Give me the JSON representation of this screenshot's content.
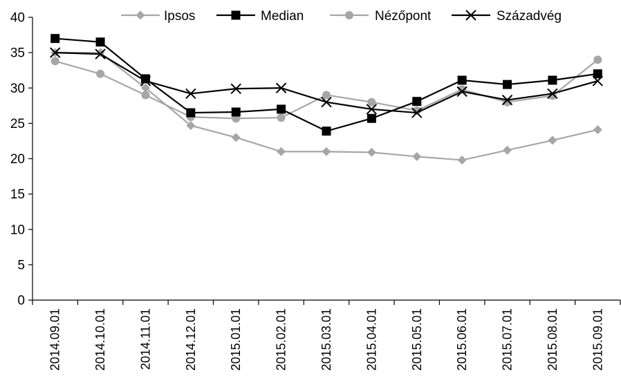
{
  "chart_data": {
    "type": "line",
    "title": "",
    "xlabel": "",
    "ylabel": "",
    "ylim": [
      0,
      40
    ],
    "yticks": [
      "0",
      "5",
      "10",
      "15",
      "20",
      "25",
      "30",
      "35",
      "40"
    ],
    "categories": [
      "2014.09.01",
      "2014.10.01",
      "2014.11.01",
      "2014.12.01",
      "2015.01.01",
      "2015.02.01",
      "2015.03.01",
      "2015.04.01",
      "2015.05.01",
      "2015.06.01",
      "2015.07.01",
      "2015.08.01",
      "2015.09.01"
    ],
    "grid": false,
    "legend": "top",
    "series": [
      {
        "name": "Ipsos",
        "marker": "diamond",
        "color": "#a6a6a6",
        "values": [
          35,
          35,
          30,
          24.7,
          23,
          21,
          21,
          20.9,
          20.3,
          19.8,
          21.2,
          22.6,
          24.1
        ]
      },
      {
        "name": "Median",
        "marker": "square",
        "color": "#000000",
        "values": [
          37,
          36.5,
          31.3,
          26.5,
          26.6,
          27,
          23.9,
          25.7,
          28.1,
          31.1,
          30.5,
          31.1,
          32
        ]
      },
      {
        "name": "Nézőpont",
        "marker": "circle",
        "color": "#a6a6a6",
        "values": [
          33.8,
          32,
          29,
          25.9,
          25.7,
          25.8,
          29,
          28,
          26.8,
          29.8,
          28,
          28.9,
          34
        ]
      },
      {
        "name": "Századvég",
        "marker": "x",
        "color": "#000000",
        "values": [
          35,
          34.8,
          31,
          29.2,
          29.9,
          30,
          28,
          27,
          26.5,
          29.5,
          28.3,
          29.2,
          31
        ]
      }
    ]
  }
}
